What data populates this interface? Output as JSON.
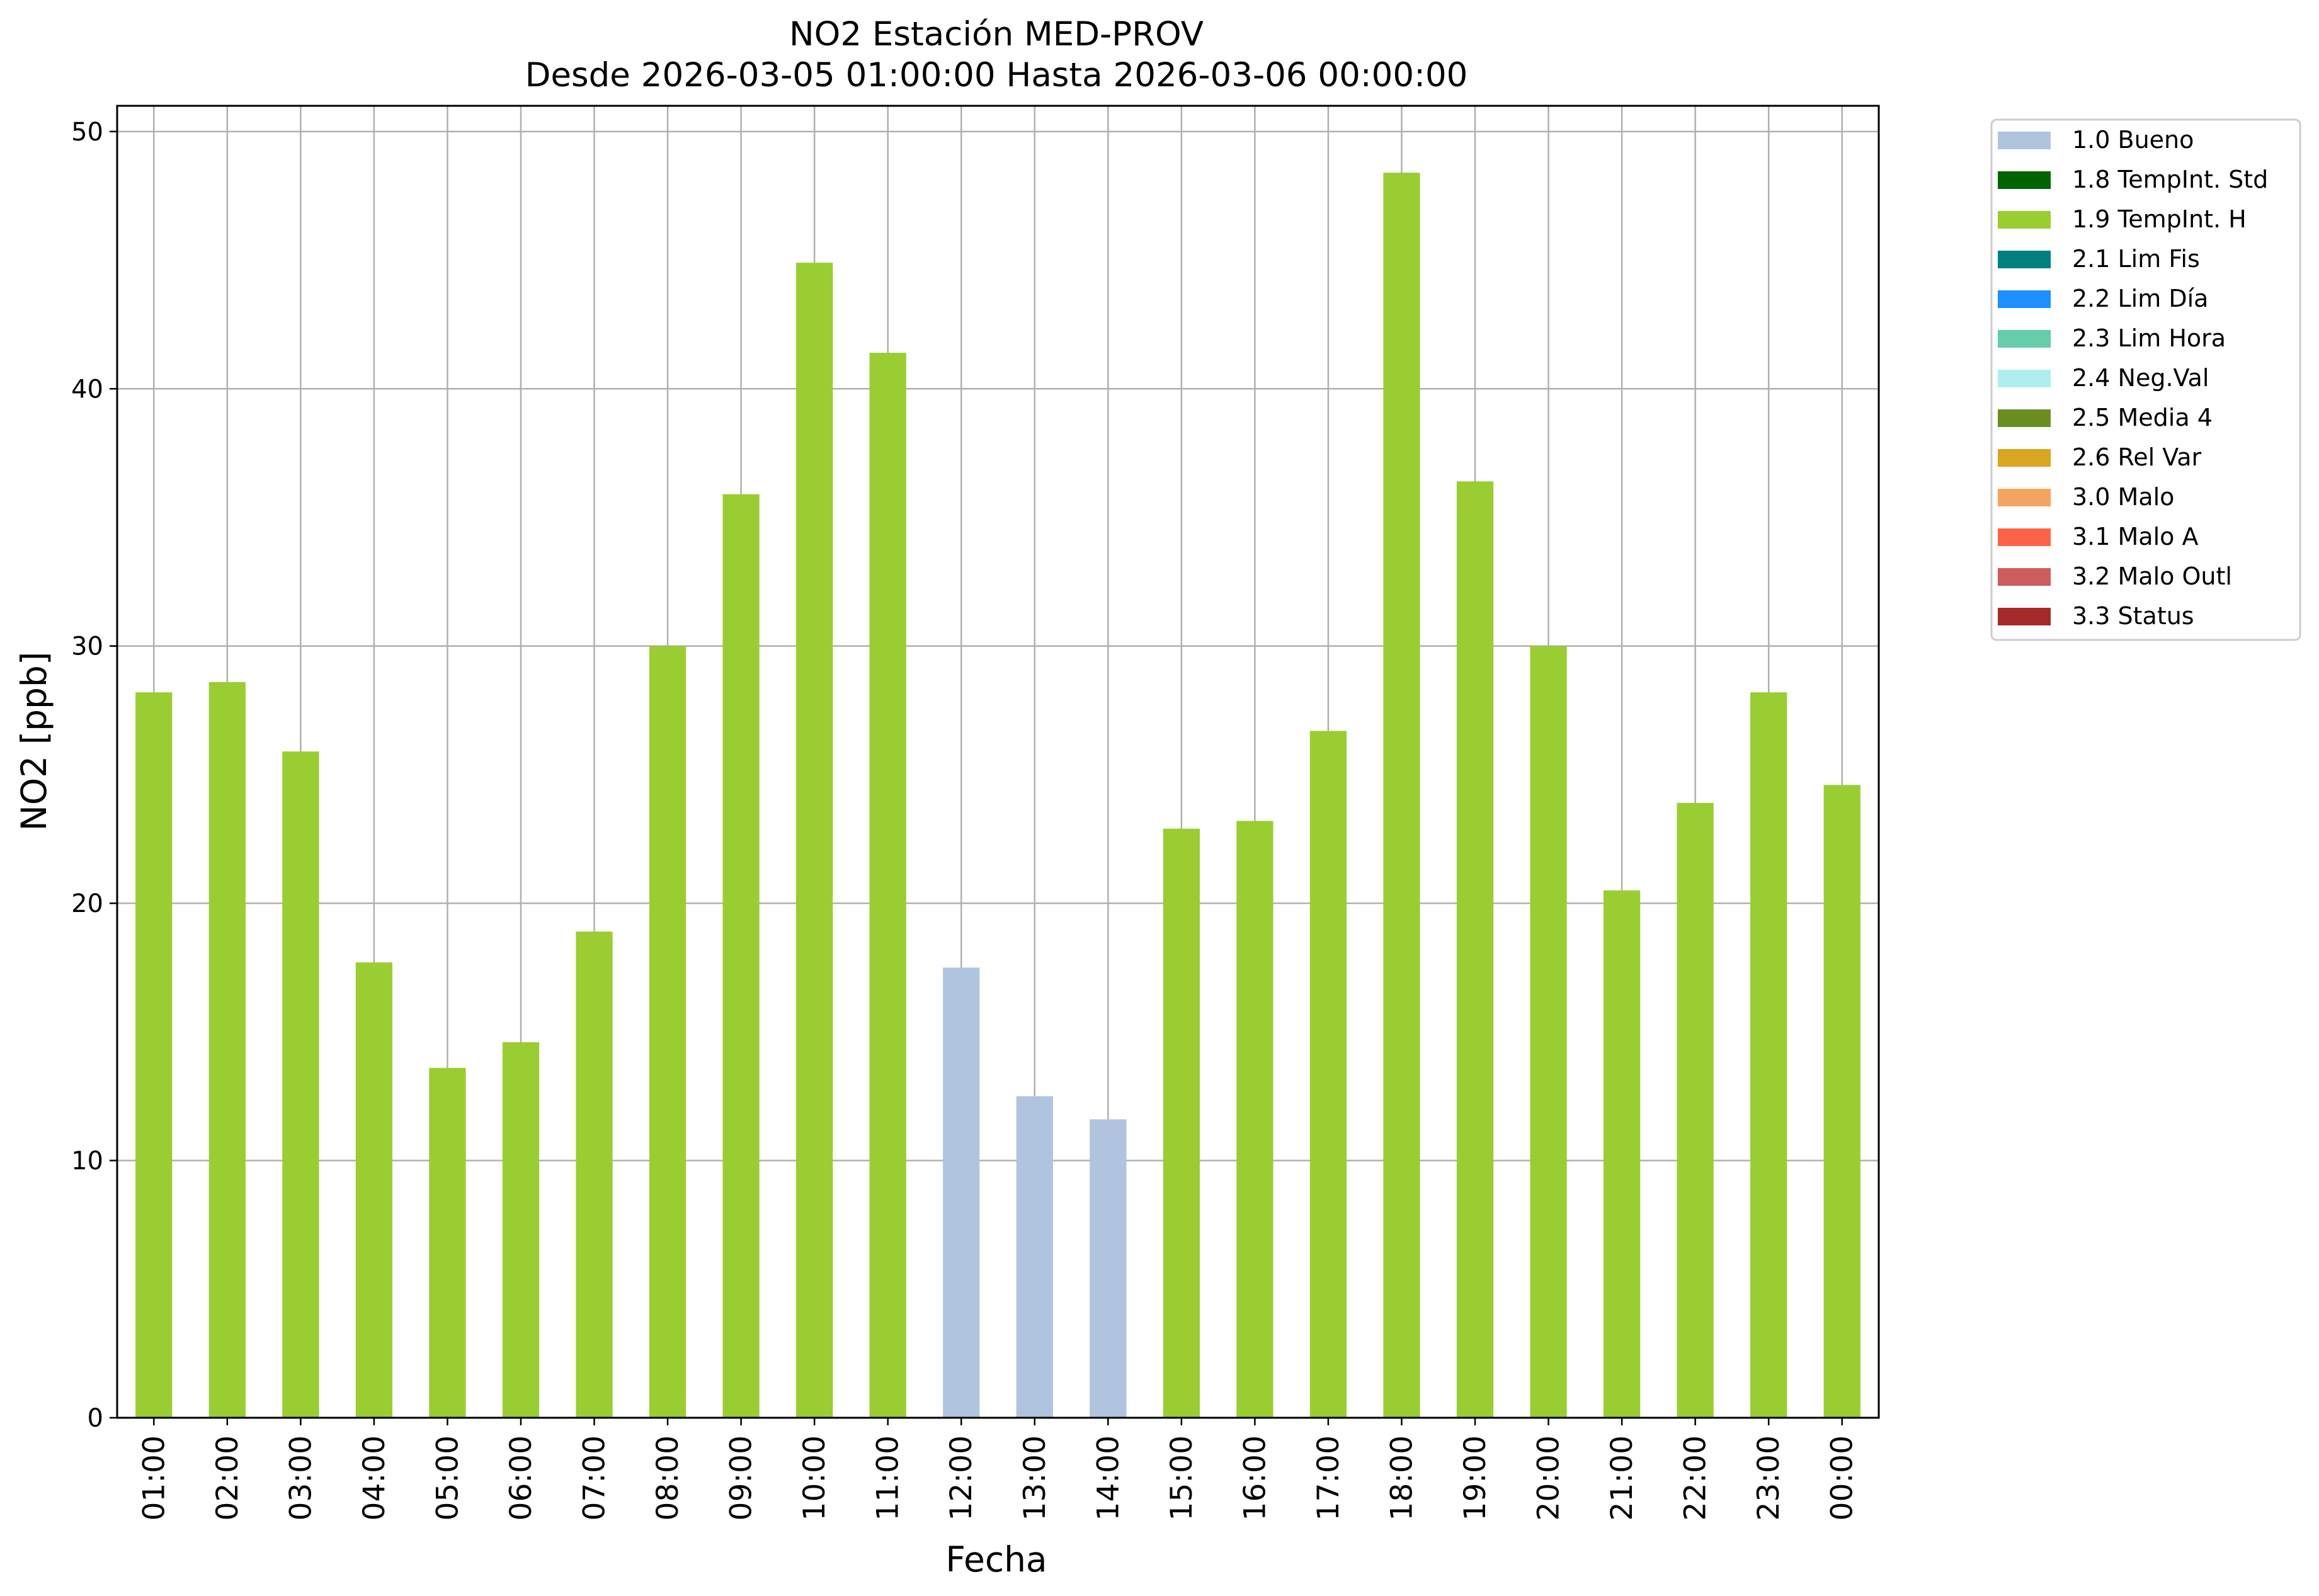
{
  "chart_data": {
    "type": "bar",
    "title": "NO2 Estación MED-PROV",
    "subtitle": "Desde 2026-03-05 01:00:00 Hasta 2026-03-06 00:00:00",
    "xlabel": "Fecha",
    "ylabel": "NO2 [ppb]",
    "ylim": [
      0,
      51
    ],
    "yticks": [
      0,
      10,
      20,
      30,
      40,
      50
    ],
    "grid": true,
    "legend_position": "outside-top-right",
    "categories": [
      "01:00",
      "02:00",
      "03:00",
      "04:00",
      "05:00",
      "06:00",
      "07:00",
      "08:00",
      "09:00",
      "10:00",
      "11:00",
      "12:00",
      "13:00",
      "14:00",
      "15:00",
      "16:00",
      "17:00",
      "18:00",
      "19:00",
      "20:00",
      "21:00",
      "22:00",
      "23:00",
      "00:00"
    ],
    "values": [
      28.2,
      28.6,
      25.9,
      17.7,
      13.6,
      14.6,
      18.9,
      30.0,
      35.9,
      44.9,
      41.4,
      17.5,
      12.5,
      11.6,
      22.9,
      23.2,
      26.7,
      48.4,
      36.4,
      30.0,
      20.5,
      23.9,
      28.2,
      24.6
    ],
    "flags": [
      "1.9 TempInt. H",
      "1.9 TempInt. H",
      "1.9 TempInt. H",
      "1.9 TempInt. H",
      "1.9 TempInt. H",
      "1.9 TempInt. H",
      "1.9 TempInt. H",
      "1.9 TempInt. H",
      "1.9 TempInt. H",
      "1.9 TempInt. H",
      "1.9 TempInt. H",
      "1.0 Bueno",
      "1.0 Bueno",
      "1.0 Bueno",
      "1.9 TempInt. H",
      "1.9 TempInt. H",
      "1.9 TempInt. H",
      "1.9 TempInt. H",
      "1.9 TempInt. H",
      "1.9 TempInt. H",
      "1.9 TempInt. H",
      "1.9 TempInt. H",
      "1.9 TempInt. H",
      "1.9 TempInt. H"
    ],
    "legend": [
      {
        "name": "1.0 Bueno",
        "color": "#b0c4de"
      },
      {
        "name": "1.8 TempInt. Std",
        "color": "#006400"
      },
      {
        "name": "1.9 TempInt. H",
        "color": "#9acd32"
      },
      {
        "name": "2.1 Lim Fis",
        "color": "#008080"
      },
      {
        "name": "2.2 Lim Día",
        "color": "#1e90ff"
      },
      {
        "name": "2.3 Lim Hora",
        "color": "#66cdaa"
      },
      {
        "name": "2.4 Neg.Val",
        "color": "#afeeee"
      },
      {
        "name": "2.5 Media 4",
        "color": "#6b8e23"
      },
      {
        "name": "2.6 Rel Var",
        "color": "#daa520"
      },
      {
        "name": "3.0 Malo",
        "color": "#f4a460"
      },
      {
        "name": "3.1 Malo A",
        "color": "#ff6347"
      },
      {
        "name": "3.2 Malo Outl",
        "color": "#cd5c5c"
      },
      {
        "name": "3.3 Status",
        "color": "#a52a2a"
      }
    ]
  }
}
